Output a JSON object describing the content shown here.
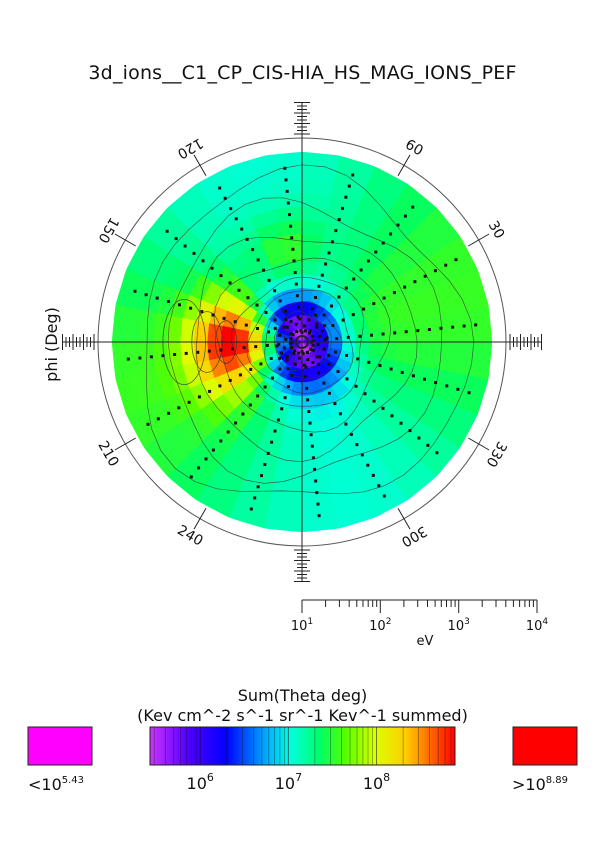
{
  "chart_data": {
    "type": "heatmap",
    "projection": "polar",
    "title": "3d_ions__C1_CP_CIS-HIA_HS_MAG_IONS_PEF",
    "ylabel": "phi (Deg)",
    "radial_axis": {
      "label": "eV",
      "scale": "log",
      "range": [
        10,
        10000
      ],
      "tick_labels": [
        {
          "base": "10",
          "exp": "1"
        },
        {
          "base": "10",
          "exp": "2"
        },
        {
          "base": "10",
          "exp": "3"
        },
        {
          "base": "10",
          "exp": "4"
        }
      ]
    },
    "angle_labels": [
      "30",
      "60",
      "120",
      "150",
      "210",
      "240",
      "300",
      "330"
    ],
    "angle_label_values": [
      30,
      60,
      120,
      150,
      210,
      240,
      300,
      330
    ],
    "colorbar": {
      "title_line1": "Sum(Theta deg)",
      "title_line2": "(Kev cm^-2 s^-1 sr^-1 Kev^-1 summed)",
      "scale": "log",
      "range_exp": [
        5.43,
        8.89
      ],
      "tick_labels": [
        {
          "base": "10",
          "exp": "6"
        },
        {
          "base": "10",
          "exp": "7"
        },
        {
          "base": "10",
          "exp": "8"
        }
      ],
      "tick_values_exp": [
        6,
        7,
        8
      ],
      "under": {
        "prefix": "<10",
        "exp": "5.43",
        "color": "#ff00ff"
      },
      "over": {
        "prefix": ">10",
        "exp": "8.89",
        "color": "#ff0000"
      }
    },
    "approx_field": {
      "description_values": "log10 flux: minimum near origin ~5.6, background ~7.3, maximum near phi=180 at ~10^2 eV ~8.8",
      "center_log": 5.6,
      "background_log": 7.3,
      "peak": {
        "phi_deg": 180,
        "energy_eV": 120,
        "log": 8.85
      },
      "secondary_peak": {
        "phi_deg": 100,
        "energy_eV": 300,
        "log": 7.8
      }
    }
  }
}
